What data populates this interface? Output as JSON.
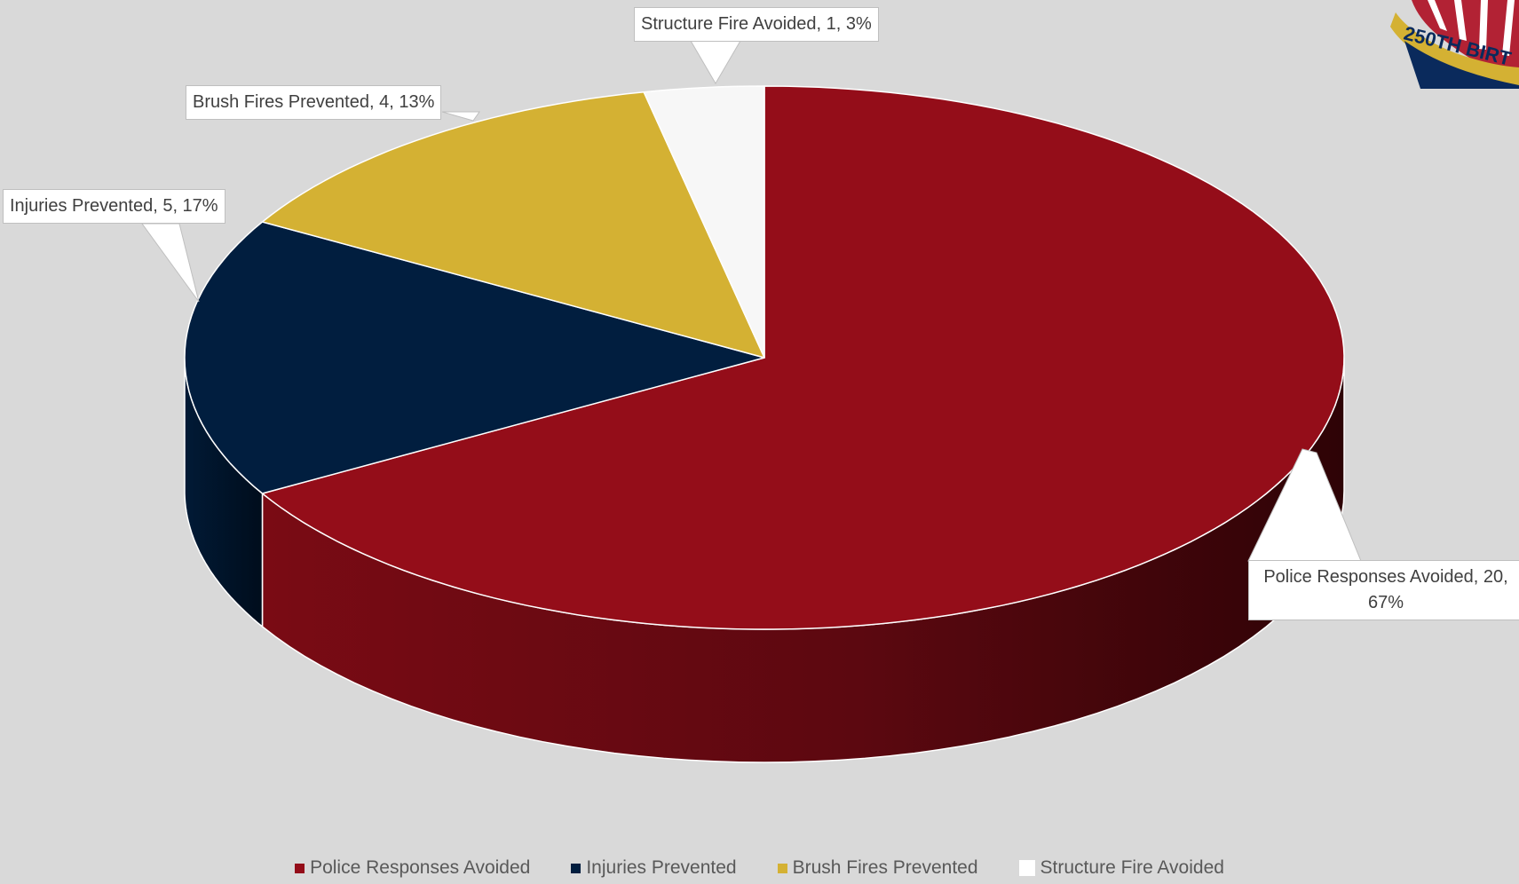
{
  "chart_data": {
    "type": "pie",
    "style": "3d",
    "title": "",
    "legend_position": "bottom",
    "slices": [
      {
        "label": "Police Responses Avoided",
        "value": 20,
        "percent": "67%",
        "data_label": "Police Responses Avoided, 20, 67%",
        "color": "#940d19",
        "side_color": "#6e0a13"
      },
      {
        "label": "Injuries Prevented",
        "value": 5,
        "percent": "17%",
        "data_label": "Injuries Prevented, 5, 17%",
        "color": "#011e3f",
        "side_color": "#01162e"
      },
      {
        "label": "Brush Fires Prevented",
        "value": 4,
        "percent": "13%",
        "data_label": "Brush Fires Prevented, 4, 13%",
        "color": "#d4b133",
        "side_color": "#a88a22"
      },
      {
        "label": "Structure Fire Avoided",
        "value": 1,
        "percent": "3%",
        "data_label": "Structure Fire Avoided, 1, 3%",
        "color": "#f7f7f7",
        "side_color": "#d0d0d0"
      }
    ]
  },
  "labels": {
    "police_line1": "Police Responses Avoided, 20,",
    "police_line2": "67%",
    "injuries": "Injuries Prevented, 5, 17%",
    "brush": "Brush Fires Prevented, 4, 13%",
    "structure": "Structure Fire Avoided, 1, 3%"
  },
  "legend": {
    "items": [
      {
        "label": "Police Responses Avoided",
        "color": "#940d19"
      },
      {
        "label": "Injuries Prevented",
        "color": "#011e3f"
      },
      {
        "label": "Brush Fires Prevented",
        "color": "#d4b133"
      },
      {
        "label": "Structure Fire Avoided",
        "color": "#ffffff"
      }
    ]
  },
  "logo": {
    "text": "250TH BIRT",
    "colors": [
      "#0a2a5c",
      "#d4b133",
      "#b22234"
    ]
  }
}
